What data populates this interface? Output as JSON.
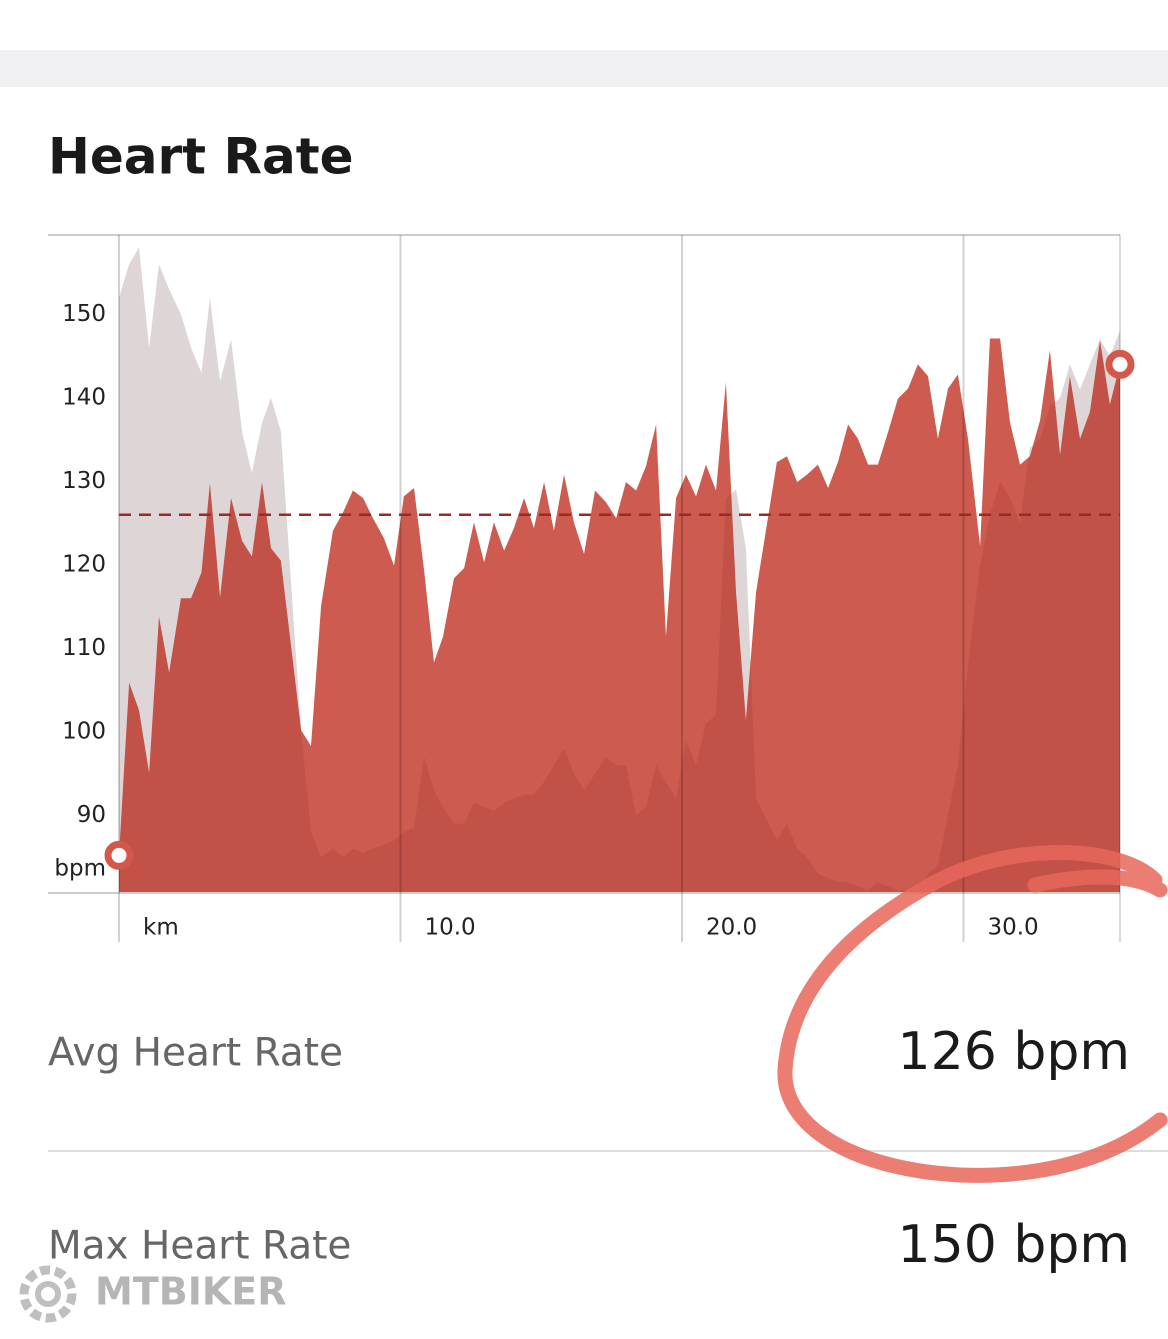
{
  "header": {
    "title": "Heart Rate"
  },
  "chart_data": {
    "type": "area",
    "x": [
      0,
      0.36,
      0.71,
      1.07,
      1.42,
      1.78,
      2.2,
      2.56,
      2.93,
      3.23,
      3.59,
      3.98,
      4.37,
      4.72,
      5.08,
      5.4,
      5.75,
      6.47,
      6.82,
      7.18,
      7.6,
      7.96,
      8.31,
      8.67,
      9.02,
      9.41,
      9.77,
      10.12,
      10.48,
      10.84,
      11.19,
      11.51,
      11.9,
      12.26,
      12.61,
      12.97,
      13.32,
      13.68,
      14.03,
      14.39,
      14.74,
      15.1,
      15.45,
      15.81,
      16.16,
      16.52,
      16.91,
      17.3,
      17.66,
      18.01,
      18.37,
      18.72,
      19.08,
      19.43,
      19.79,
      20.14,
      20.5,
      20.85,
      21.21,
      21.56,
      21.92,
      22.27,
      22.63,
      23.37,
      23.73,
      24.09,
      24.44,
      24.83,
      25.19,
      25.54,
      25.9,
      26.25,
      26.61,
      26.96,
      27.32,
      27.67,
      28.03,
      28.38,
      28.74,
      29.09,
      29.45,
      29.8,
      30.16,
      30.59,
      30.94,
      31.3,
      31.65,
      32.01,
      32.36,
      32.72,
      33.07,
      33.43,
      33.78,
      34.14,
      34.49,
      34.85,
      35.2,
      35.56
    ],
    "series": [
      {
        "color": "#cd5b4f",
        "values": [
          85.2,
          105.9,
          102.6,
          95.1,
          113.8,
          107.1,
          116,
          116,
          119.1,
          129.8,
          116.1,
          128,
          122.9,
          121,
          129.9,
          122,
          120.5,
          100.2,
          98.3,
          115.1,
          124.1,
          126.3,
          128.9,
          128,
          125.6,
          123.2,
          119.9,
          128.2,
          129.2,
          119.3,
          108.3,
          111.4,
          118.4,
          119.6,
          125.1,
          120.3,
          125.1,
          121.7,
          124.4,
          128,
          124.4,
          129.9,
          124.1,
          130.8,
          125.1,
          121.3,
          128.9,
          127.5,
          125.6,
          129.9,
          128.9,
          131.8,
          136.8,
          111.4,
          128,
          130.8,
          128.2,
          132,
          128.9,
          141.9,
          116.7,
          101.4,
          116.7,
          132.3,
          133,
          129.9,
          130.8,
          132,
          129.2,
          132.3,
          136.8,
          135.1,
          132,
          132,
          135.9,
          139.9,
          141.1,
          144,
          142.6,
          135.1,
          141.1,
          142.8,
          135.1,
          122.2,
          147.1,
          147.1,
          137.1,
          132,
          133,
          137.3,
          145.7,
          133.2,
          142.6,
          135.1,
          138.3,
          146.9,
          139.2,
          144
        ]
      },
      {
        "color": "#ececec",
        "values": [
          152,
          156,
          158,
          146,
          156,
          153,
          150,
          146,
          143,
          152,
          142,
          147,
          136,
          131,
          137,
          140,
          136,
          100,
          88,
          85,
          86,
          85,
          86,
          85.5,
          86,
          86.5,
          87,
          88,
          88.5,
          97,
          93,
          91,
          89,
          89,
          91.5,
          91,
          90.5,
          91.5,
          92,
          92.5,
          92.5,
          94,
          96,
          98,
          95,
          93,
          95,
          97,
          96,
          96,
          90,
          91,
          96,
          94,
          92,
          99,
          96,
          101,
          102,
          128,
          129,
          122,
          92,
          87,
          89,
          86,
          85,
          83,
          82.5,
          82,
          82,
          81.5,
          81,
          82,
          81.5,
          81,
          81,
          81,
          83,
          84,
          90,
          96,
          108,
          120,
          126,
          130,
          128,
          125,
          134,
          135,
          139,
          140,
          144,
          141,
          144,
          147,
          145,
          148
        ]
      }
    ],
    "xlim": [
      0,
      35.56
    ],
    "ylim": [
      80.7,
      159.5
    ],
    "xticks": [
      {
        "value": 0,
        "label": "km"
      },
      {
        "value": 10,
        "label": "10.0"
      },
      {
        "value": 20,
        "label": "20.0"
      },
      {
        "value": 30,
        "label": "30.0"
      }
    ],
    "yticks": [
      90,
      100,
      110,
      120,
      130,
      140,
      150
    ],
    "y_unit": "bpm",
    "avg_line": 126,
    "avg_color": "#9b2a22",
    "grid": "x"
  },
  "stats": [
    {
      "label": "Avg Heart Rate",
      "value": "126 bpm"
    },
    {
      "label": "Max Heart Rate",
      "value": "150 bpm"
    }
  ],
  "watermark": "MTBIKER"
}
